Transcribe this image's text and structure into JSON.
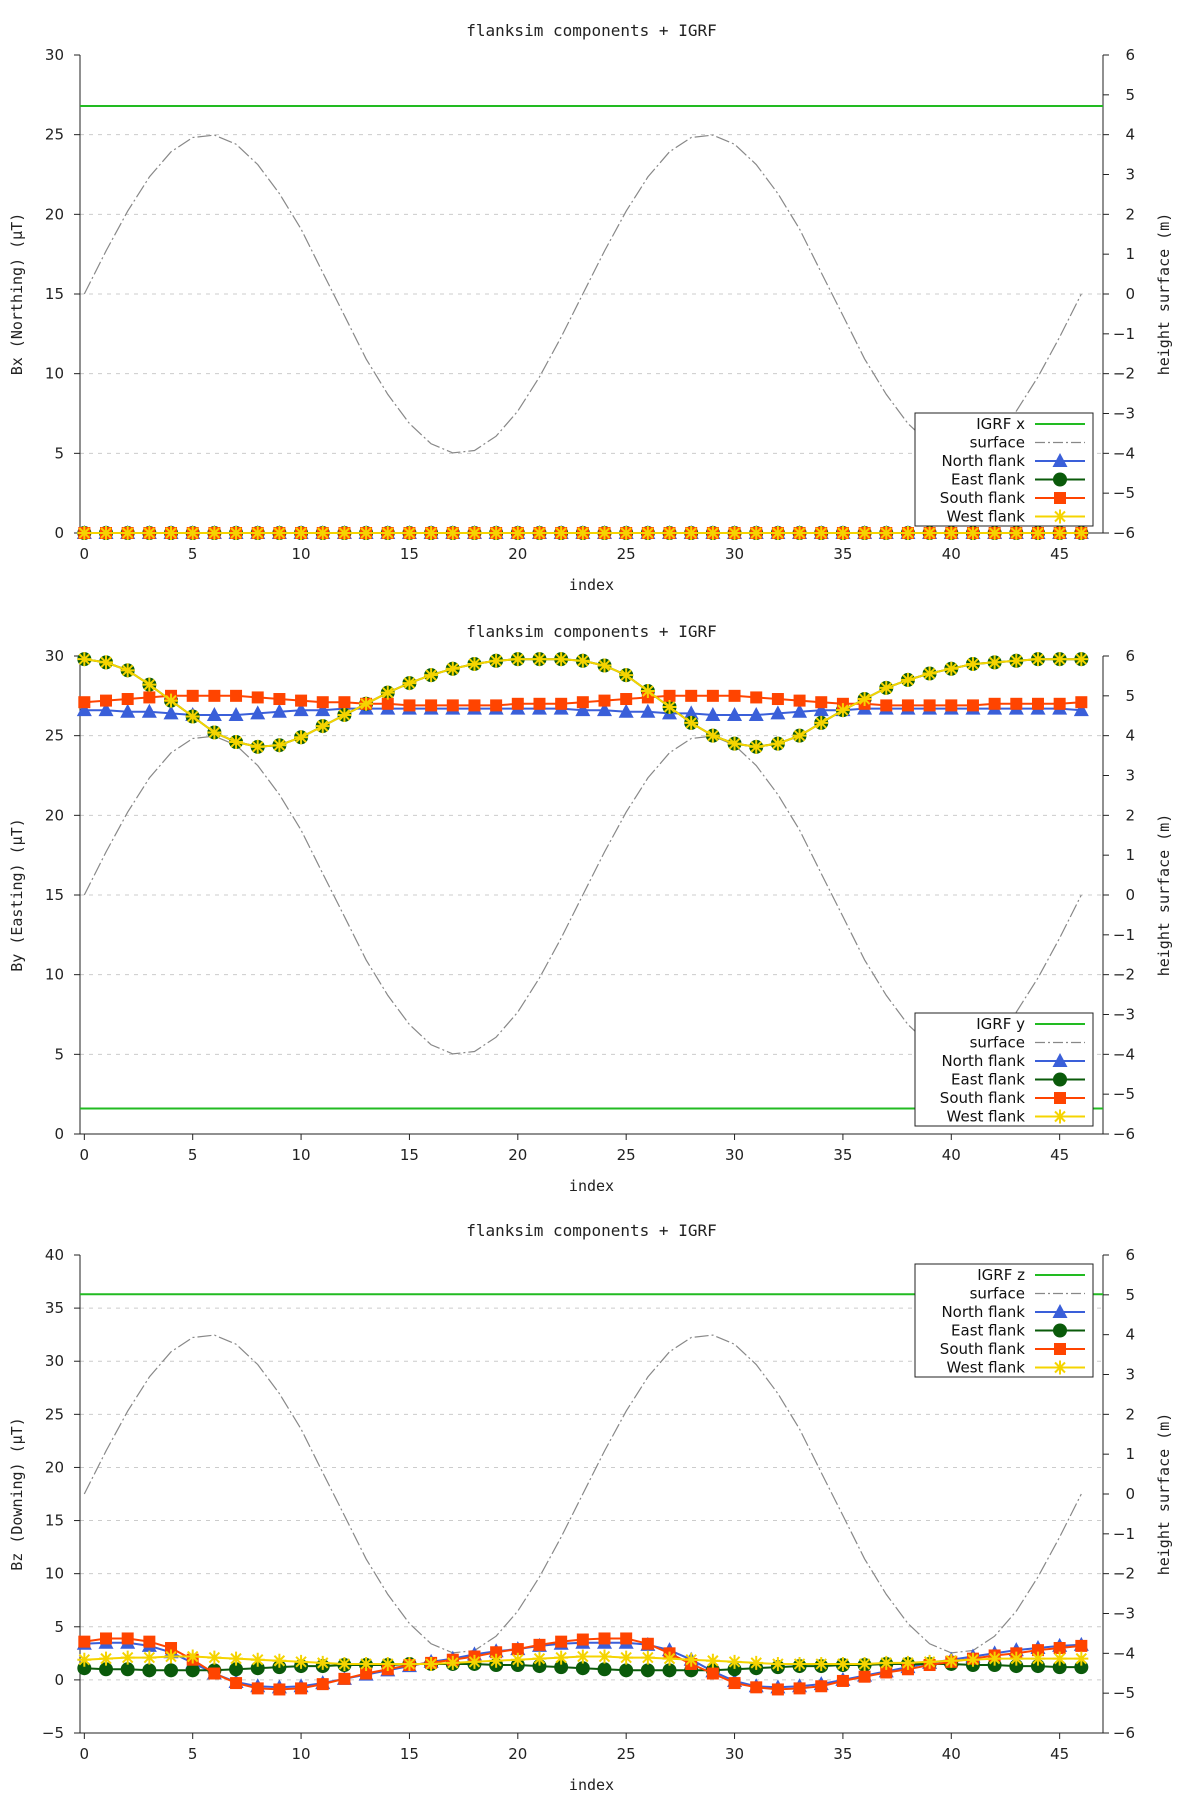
{
  "chart_data": [
    {
      "type": "line",
      "title": "flanksim components + IGRF",
      "xlabel": "index",
      "ylabel": "Bx (Northing) (μT)",
      "y2label": "height surface (m)",
      "xlim": [
        -0.2,
        47
      ],
      "ylim": [
        0,
        30
      ],
      "y2lim": [
        -6,
        6
      ],
      "xticks": [
        0,
        5,
        10,
        15,
        20,
        25,
        30,
        35,
        40,
        45
      ],
      "yticks": [
        0,
        5,
        10,
        15,
        20,
        25,
        30
      ],
      "y2ticks": [
        -6,
        -5,
        -4,
        -3,
        -2,
        -1,
        0,
        1,
        2,
        3,
        4,
        5,
        6
      ],
      "legend_position": "bottom-right",
      "grid": "horizontal dashed",
      "igrf": {
        "name": "IGRF x",
        "value": 26.8,
        "color": "#22bb22"
      },
      "surface": {
        "name": "surface",
        "axis": "y2",
        "color": "#888888",
        "amplitude": 4,
        "period": 23,
        "phase_index": 0,
        "values": [
          0.0,
          1.08,
          2.08,
          2.94,
          3.57,
          3.93,
          3.99,
          3.76,
          3.25,
          2.52,
          1.63,
          0.54,
          -0.54,
          -1.63,
          -2.52,
          -3.25,
          -3.76,
          -3.99,
          -3.93,
          -3.57,
          -2.94,
          -2.08,
          -1.08,
          0.0,
          1.08,
          2.08,
          2.94,
          3.57,
          3.93,
          3.99,
          3.76,
          3.25,
          2.52,
          1.63,
          0.54,
          -0.54,
          -1.63,
          -2.52,
          -3.25,
          -3.76,
          -3.99,
          -3.93,
          -3.57,
          -2.94,
          -2.08,
          -1.08,
          0.0
        ]
      },
      "series": [
        {
          "name": "North flank",
          "color": "#3a5fd9",
          "marker": "triangle",
          "values": [
            0,
            0,
            0,
            0,
            0,
            0,
            0,
            0,
            0,
            0,
            0,
            0,
            0,
            0,
            0,
            0,
            0,
            0,
            0,
            0,
            0,
            0,
            0,
            0,
            0,
            0,
            0,
            0,
            0,
            0,
            0,
            0,
            0,
            0,
            0,
            0,
            0,
            0,
            0,
            0,
            0,
            0,
            0,
            0,
            0,
            0,
            0
          ]
        },
        {
          "name": "East flank",
          "color": "#0a5a0a",
          "marker": "circle",
          "values": [
            0,
            0,
            0,
            0,
            0,
            0,
            0,
            0,
            0,
            0,
            0,
            0,
            0,
            0,
            0,
            0,
            0,
            0,
            0,
            0,
            0,
            0,
            0,
            0,
            0,
            0,
            0,
            0,
            0,
            0,
            0,
            0,
            0,
            0,
            0,
            0,
            0,
            0,
            0,
            0,
            0,
            0,
            0,
            0,
            0,
            0,
            0
          ]
        },
        {
          "name": "South flank",
          "color": "#ff4400",
          "marker": "square",
          "values": [
            0,
            0,
            0,
            0,
            0,
            0,
            0,
            0,
            0,
            0,
            0,
            0,
            0,
            0,
            0,
            0,
            0,
            0,
            0,
            0,
            0,
            0,
            0,
            0,
            0,
            0,
            0,
            0,
            0,
            0,
            0,
            0,
            0,
            0,
            0,
            0,
            0,
            0,
            0,
            0,
            0,
            0,
            0,
            0,
            0,
            0,
            0
          ]
        },
        {
          "name": "West flank",
          "color": "#f5d400",
          "marker": "star",
          "values": [
            0,
            0,
            0,
            0,
            0,
            0,
            0,
            0,
            0,
            0,
            0,
            0,
            0,
            0,
            0,
            0,
            0,
            0,
            0,
            0,
            0,
            0,
            0,
            0,
            0,
            0,
            0,
            0,
            0,
            0,
            0,
            0,
            0,
            0,
            0,
            0,
            0,
            0,
            0,
            0,
            0,
            0,
            0,
            0,
            0,
            0,
            0
          ]
        }
      ]
    },
    {
      "type": "line",
      "title": "flanksim components + IGRF",
      "xlabel": "index",
      "ylabel": "By (Easting) (μT)",
      "y2label": "height surface (m)",
      "xlim": [
        -0.2,
        47
      ],
      "ylim": [
        0,
        30
      ],
      "y2lim": [
        -6,
        6
      ],
      "xticks": [
        0,
        5,
        10,
        15,
        20,
        25,
        30,
        35,
        40,
        45
      ],
      "yticks": [
        0,
        5,
        10,
        15,
        20,
        25,
        30
      ],
      "y2ticks": [
        -6,
        -5,
        -4,
        -3,
        -2,
        -1,
        0,
        1,
        2,
        3,
        4,
        5,
        6
      ],
      "legend_position": "bottom-right",
      "grid": "horizontal dashed",
      "igrf": {
        "name": "IGRF y",
        "value": 1.6,
        "color": "#22bb22"
      },
      "surface": {
        "name": "surface",
        "axis": "y2",
        "color": "#888888",
        "amplitude": 4,
        "period": 23,
        "phase_index": 0,
        "values": [
          0.0,
          1.08,
          2.08,
          2.94,
          3.57,
          3.93,
          3.99,
          3.76,
          3.25,
          2.52,
          1.63,
          0.54,
          -0.54,
          -1.63,
          -2.52,
          -3.25,
          -3.76,
          -3.99,
          -3.93,
          -3.57,
          -2.94,
          -2.08,
          -1.08,
          0.0,
          1.08,
          2.08,
          2.94,
          3.57,
          3.93,
          3.99,
          3.76,
          3.25,
          2.52,
          1.63,
          0.54,
          -0.54,
          -1.63,
          -2.52,
          -3.25,
          -3.76,
          -3.99,
          -3.93,
          -3.57,
          -2.94,
          -2.08,
          -1.08,
          0.0
        ]
      },
      "series": [
        {
          "name": "North flank",
          "color": "#3a5fd9",
          "marker": "triangle",
          "values": [
            26.6,
            26.6,
            26.5,
            26.5,
            26.4,
            26.3,
            26.3,
            26.3,
            26.4,
            26.5,
            26.6,
            26.6,
            26.7,
            26.7,
            26.7,
            26.7,
            26.7,
            26.7,
            26.7,
            26.7,
            26.7,
            26.7,
            26.7,
            26.6,
            26.6,
            26.5,
            26.5,
            26.4,
            26.4,
            26.3,
            26.3,
            26.3,
            26.4,
            26.5,
            26.6,
            26.6,
            26.7,
            26.7,
            26.7,
            26.7,
            26.7,
            26.7,
            26.7,
            26.7,
            26.7,
            26.7,
            26.6
          ]
        },
        {
          "name": "East flank",
          "color": "#0a5a0a",
          "marker": "circle",
          "values": [
            29.8,
            29.6,
            29.1,
            28.2,
            27.2,
            26.2,
            25.2,
            24.6,
            24.3,
            24.4,
            24.9,
            25.6,
            26.3,
            27.0,
            27.7,
            28.3,
            28.8,
            29.2,
            29.5,
            29.7,
            29.8,
            29.8,
            29.8,
            29.7,
            29.4,
            28.8,
            27.8,
            26.8,
            25.8,
            25.0,
            24.5,
            24.3,
            24.5,
            25.0,
            25.8,
            26.6,
            27.3,
            28.0,
            28.5,
            28.9,
            29.2,
            29.5,
            29.6,
            29.7,
            29.8,
            29.8,
            29.8
          ]
        },
        {
          "name": "South flank",
          "color": "#ff4400",
          "marker": "square",
          "values": [
            27.1,
            27.2,
            27.3,
            27.4,
            27.5,
            27.5,
            27.5,
            27.5,
            27.4,
            27.3,
            27.2,
            27.1,
            27.1,
            27.0,
            27.0,
            26.9,
            26.9,
            26.9,
            26.9,
            26.9,
            27.0,
            27.0,
            27.0,
            27.1,
            27.2,
            27.3,
            27.4,
            27.5,
            27.5,
            27.5,
            27.5,
            27.4,
            27.3,
            27.2,
            27.1,
            27.0,
            27.0,
            26.9,
            26.9,
            26.9,
            26.9,
            26.9,
            27.0,
            27.0,
            27.0,
            27.0,
            27.1
          ]
        },
        {
          "name": "West flank",
          "color": "#f5d400",
          "marker": "star",
          "values": [
            29.8,
            29.6,
            29.1,
            28.2,
            27.2,
            26.2,
            25.2,
            24.6,
            24.3,
            24.4,
            24.9,
            25.6,
            26.3,
            27.0,
            27.7,
            28.3,
            28.8,
            29.2,
            29.5,
            29.7,
            29.8,
            29.8,
            29.8,
            29.7,
            29.4,
            28.8,
            27.8,
            26.8,
            25.8,
            25.0,
            24.5,
            24.3,
            24.5,
            25.0,
            25.8,
            26.6,
            27.3,
            28.0,
            28.5,
            28.9,
            29.2,
            29.5,
            29.6,
            29.7,
            29.8,
            29.8,
            29.8
          ]
        }
      ]
    },
    {
      "type": "line",
      "title": "flanksim components + IGRF",
      "xlabel": "index",
      "ylabel": "Bz (Downing) (μT)",
      "y2label": "height surface (m)",
      "xlim": [
        -0.2,
        47
      ],
      "ylim": [
        -5,
        40
      ],
      "y2lim": [
        -6,
        6
      ],
      "xticks": [
        0,
        5,
        10,
        15,
        20,
        25,
        30,
        35,
        40,
        45
      ],
      "yticks": [
        -5,
        0,
        5,
        10,
        15,
        20,
        25,
        30,
        35,
        40
      ],
      "y2ticks": [
        -6,
        -5,
        -4,
        -3,
        -2,
        -1,
        0,
        1,
        2,
        3,
        4,
        5,
        6
      ],
      "legend_position": "top-right",
      "grid": "horizontal dashed",
      "igrf": {
        "name": "IGRF z",
        "value": 36.3,
        "color": "#22bb22"
      },
      "surface": {
        "name": "surface",
        "axis": "y2",
        "color": "#888888",
        "amplitude": 4,
        "period": 23,
        "phase_index": 0,
        "values": [
          0.0,
          1.08,
          2.08,
          2.94,
          3.57,
          3.93,
          3.99,
          3.76,
          3.25,
          2.52,
          1.63,
          0.54,
          -0.54,
          -1.63,
          -2.52,
          -3.25,
          -3.76,
          -3.99,
          -3.93,
          -3.57,
          -2.94,
          -2.08,
          -1.08,
          0.0,
          1.08,
          2.08,
          2.94,
          3.57,
          3.93,
          3.99,
          3.76,
          3.25,
          2.52,
          1.63,
          0.54,
          -0.54,
          -1.63,
          -2.52,
          -3.25,
          -3.76,
          -3.99,
          -3.93,
          -3.57,
          -2.94,
          -2.08,
          -1.08,
          0.0
        ]
      },
      "series": [
        {
          "name": "North flank",
          "color": "#3a5fd9",
          "marker": "triangle",
          "values": [
            3.4,
            3.5,
            3.5,
            3.2,
            2.6,
            1.6,
            0.6,
            -0.2,
            -0.6,
            -0.7,
            -0.6,
            -0.3,
            0.1,
            0.5,
            0.9,
            1.3,
            1.7,
            2.0,
            2.4,
            2.7,
            2.9,
            3.2,
            3.4,
            3.5,
            3.5,
            3.5,
            3.3,
            2.8,
            1.9,
            0.8,
            -0.1,
            -0.6,
            -0.7,
            -0.6,
            -0.4,
            0.0,
            0.4,
            0.8,
            1.2,
            1.6,
            1.9,
            2.2,
            2.5,
            2.8,
            3.0,
            3.2,
            3.3
          ]
        },
        {
          "name": "East flank",
          "color": "#0a5a0a",
          "marker": "circle",
          "values": [
            1.1,
            1.0,
            1.0,
            0.9,
            0.9,
            0.9,
            0.9,
            1.0,
            1.1,
            1.2,
            1.3,
            1.3,
            1.4,
            1.4,
            1.4,
            1.5,
            1.5,
            1.5,
            1.5,
            1.4,
            1.4,
            1.3,
            1.2,
            1.1,
            1.0,
            0.9,
            0.9,
            0.9,
            0.9,
            0.9,
            1.0,
            1.1,
            1.2,
            1.3,
            1.3,
            1.4,
            1.4,
            1.5,
            1.5,
            1.5,
            1.5,
            1.4,
            1.4,
            1.3,
            1.3,
            1.2,
            1.2
          ]
        },
        {
          "name": "South flank",
          "color": "#ff4400",
          "marker": "square",
          "values": [
            3.6,
            3.9,
            3.9,
            3.6,
            3.0,
            1.9,
            0.6,
            -0.3,
            -0.8,
            -0.9,
            -0.8,
            -0.4,
            0.1,
            0.6,
            1.0,
            1.4,
            1.6,
            1.9,
            2.2,
            2.6,
            2.9,
            3.3,
            3.6,
            3.8,
            3.9,
            3.9,
            3.4,
            2.5,
            1.5,
            0.6,
            -0.3,
            -0.7,
            -0.9,
            -0.8,
            -0.6,
            -0.1,
            0.3,
            0.7,
            1.0,
            1.4,
            1.7,
            2.0,
            2.3,
            2.5,
            2.8,
            3.0,
            3.2
          ]
        },
        {
          "name": "West flank",
          "color": "#f5d400",
          "marker": "star",
          "values": [
            1.9,
            2.0,
            2.1,
            2.1,
            2.2,
            2.2,
            2.1,
            2.0,
            1.9,
            1.8,
            1.7,
            1.6,
            1.5,
            1.5,
            1.5,
            1.5,
            1.5,
            1.6,
            1.7,
            1.8,
            1.9,
            2.0,
            2.1,
            2.2,
            2.2,
            2.1,
            2.1,
            2.0,
            1.9,
            1.8,
            1.7,
            1.6,
            1.5,
            1.5,
            1.5,
            1.5,
            1.5,
            1.6,
            1.6,
            1.7,
            1.8,
            1.9,
            2.0,
            2.0,
            2.0,
            2.0,
            2.0
          ]
        }
      ]
    }
  ]
}
